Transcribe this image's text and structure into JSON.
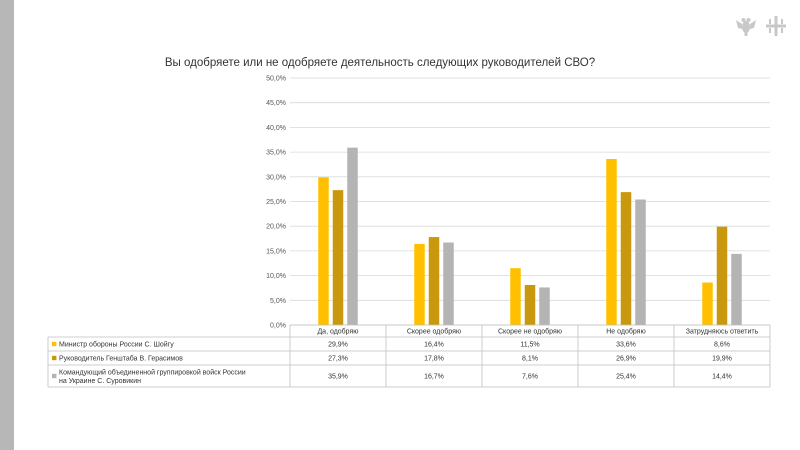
{
  "colors": {
    "series": [
      "#FFC000",
      "#C9980C",
      "#B4B4B4"
    ],
    "grid": "#D9D9D9",
    "stripe": "#B7B7B7"
  },
  "chart_data": {
    "type": "bar",
    "title": "Вы одобряете или не одобряете деятельность следующих руководителей СВО?",
    "categories": [
      "Да, одобряю",
      "Скорее одобряю",
      "Скорее не одобряю",
      "Не одобряю",
      "Затрудняюсь ответить"
    ],
    "yticks": [
      "0,0%",
      "5,0%",
      "10,0%",
      "15,0%",
      "20,0%",
      "25,0%",
      "30,0%",
      "35,0%",
      "40,0%",
      "45,0%",
      "50,0%"
    ],
    "ylim": [
      0,
      50
    ],
    "grid": true,
    "legend": "data-table",
    "series": [
      {
        "name": "Министр обороны России С. Шойгу",
        "values": [
          29.9,
          16.4,
          11.5,
          33.6,
          8.6
        ],
        "labels": [
          "29,9%",
          "16,4%",
          "11,5%",
          "33,6%",
          "8,6%"
        ]
      },
      {
        "name": "Руководитель Генштаба В. Герасимов",
        "values": [
          27.3,
          17.8,
          8.1,
          26.9,
          19.9
        ],
        "labels": [
          "27,3%",
          "17,8%",
          "8,1%",
          "26,9%",
          "19,9%"
        ]
      },
      {
        "name": "Командующий объединенной группировкой войск России на Украине С. Суровикин",
        "name_lines": [
          "Командующий объединенной группировкой войск России",
          "на Украине С. Суровикин"
        ],
        "values": [
          35.9,
          16.7,
          7.6,
          25.4,
          14.4
        ],
        "labels": [
          "35,9%",
          "16,7%",
          "7,6%",
          "25,4%",
          "14,4%"
        ]
      }
    ]
  }
}
